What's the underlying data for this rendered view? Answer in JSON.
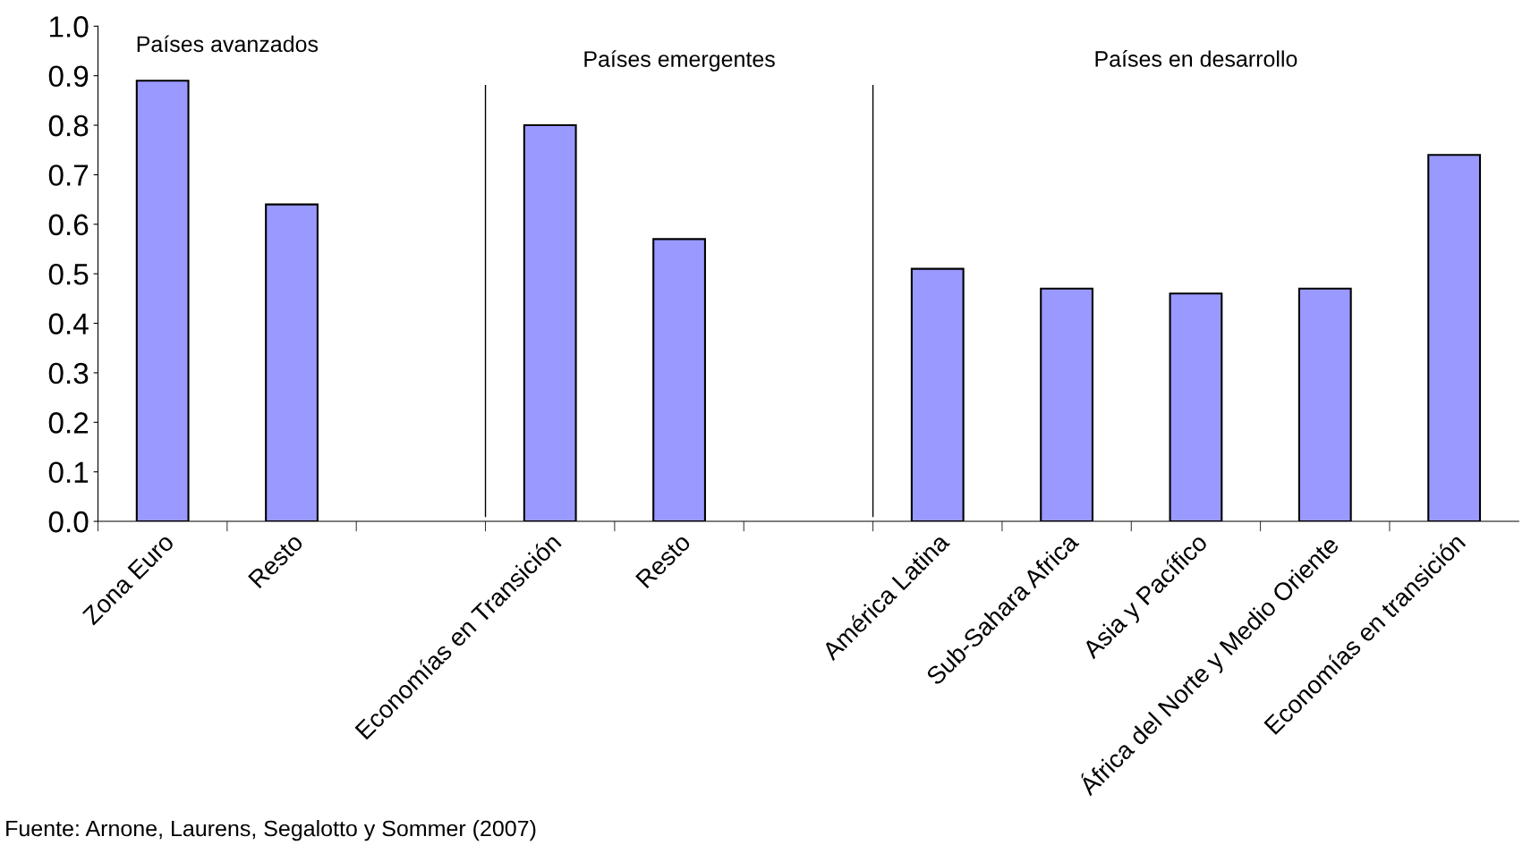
{
  "chart_data": {
    "type": "bar",
    "categories": [
      "Zona Euro",
      "Resto",
      null,
      "Economías en Transición",
      "Resto",
      null,
      "América Latina",
      "Sub-Sahara Africa",
      "Asia y Pacífico",
      "África del Norte y Medio Oriente",
      "Economías en transición"
    ],
    "values": [
      0.89,
      0.64,
      null,
      0.8,
      0.57,
      null,
      0.51,
      0.47,
      0.46,
      0.47,
      0.74
    ],
    "color": "#9999ff",
    "ylim": [
      0,
      1.0
    ],
    "yticks": [
      {
        "value": 0,
        "label": "0.0"
      },
      {
        "value": 0.1,
        "label": "0.1"
      },
      {
        "value": 0.2,
        "label": "0.2"
      },
      {
        "value": 0.3,
        "label": "0.3"
      },
      {
        "value": 0.4,
        "label": "0.4"
      },
      {
        "value": 0.5,
        "label": "0.5"
      },
      {
        "value": 0.6,
        "label": "0.6"
      },
      {
        "value": 0.7,
        "label": "0.7"
      },
      {
        "value": 0.8,
        "label": "0.8"
      },
      {
        "value": 0.9,
        "label": "0.9"
      },
      {
        "value": 1.0,
        "label": "1.0"
      }
    ],
    "grid": false,
    "annotations": [
      "Países avanzados",
      "Países emergentes",
      "Países en desarrollo",
      "Fuente: Arnone, Laurens, Segalotto y Sommer (2007)"
    ]
  }
}
